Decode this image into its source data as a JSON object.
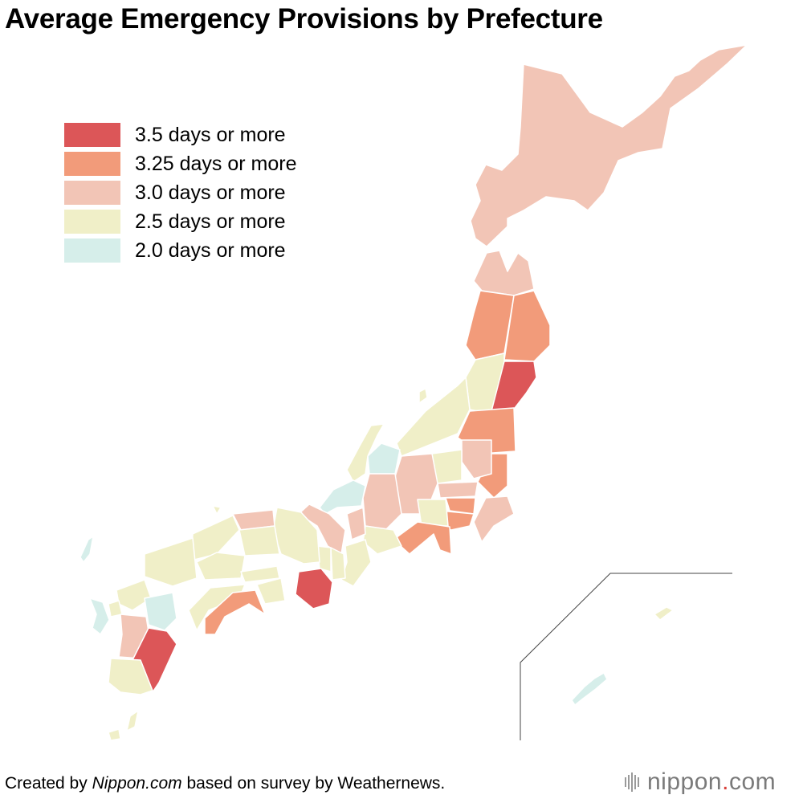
{
  "title": "Average Emergency Provisions by Prefecture",
  "legend": [
    {
      "label": "3.5 days or more",
      "color": "#dc5658"
    },
    {
      "label": "3.25 days or more",
      "color": "#f29b7a"
    },
    {
      "label": "3.0 days or more",
      "color": "#f2c5b6"
    },
    {
      "label": "2.5 days or more",
      "color": "#f0efc8"
    },
    {
      "label": "2.0 days or more",
      "color": "#d6eeea"
    }
  ],
  "credit": {
    "prefix": "Created by ",
    "site": "Nippon.com",
    "suffix": " based on survey by Weathernews."
  },
  "logo": {
    "name": "nippon",
    "dot": ".",
    "tld": "com"
  }
}
